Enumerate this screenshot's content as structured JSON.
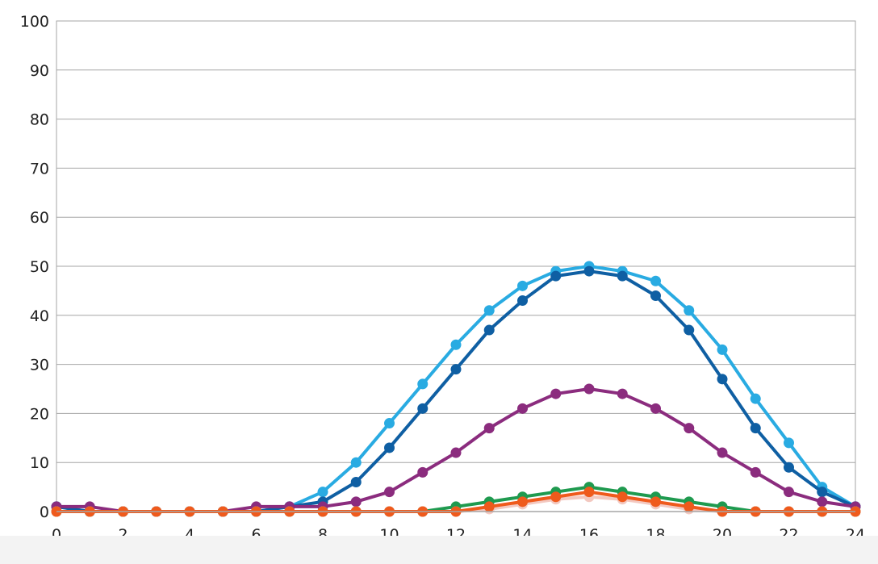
{
  "chart_data": {
    "type": "line",
    "title": "",
    "xlabel": "",
    "ylabel": "",
    "xlim": [
      0,
      24
    ],
    "ylim": [
      0,
      100
    ],
    "x_ticks": [
      "0",
      "2",
      "4",
      "6",
      "8",
      "10",
      "12",
      "14",
      "16",
      "18",
      "20",
      "22",
      "24"
    ],
    "y_ticks": [
      "0",
      "10",
      "20",
      "30",
      "40",
      "50",
      "60",
      "70",
      "80",
      "90",
      "100"
    ],
    "grid": "horizontal",
    "x": [
      0,
      1,
      2,
      3,
      4,
      5,
      6,
      7,
      8,
      9,
      10,
      11,
      12,
      13,
      14,
      15,
      16,
      17,
      18,
      19,
      20,
      21,
      22,
      23,
      24
    ],
    "series": [
      {
        "color": "#29abe2",
        "values": [
          1,
          0,
          0,
          0,
          0,
          0,
          0,
          1,
          4,
          10,
          18,
          26,
          34,
          41,
          46,
          49,
          50,
          49,
          47,
          41,
          33,
          23,
          14,
          5,
          1
        ]
      },
      {
        "color": "#0f5fa3",
        "values": [
          1,
          0,
          0,
          0,
          0,
          0,
          0,
          1,
          2,
          6,
          13,
          21,
          29,
          37,
          43,
          48,
          49,
          48,
          44,
          37,
          27,
          17,
          9,
          4,
          1
        ]
      },
      {
        "color": "#8b2c7e",
        "values": [
          1,
          1,
          0,
          0,
          0,
          0,
          1,
          1,
          1,
          2,
          4,
          8,
          12,
          17,
          21,
          24,
          25,
          24,
          21,
          17,
          12,
          8,
          4,
          2,
          1
        ]
      },
      {
        "color": "#1f9a4f",
        "values": [
          0,
          0,
          0,
          0,
          0,
          0,
          0,
          0,
          0,
          0,
          0,
          0,
          1,
          2,
          3,
          4,
          5,
          4,
          3,
          2,
          1,
          0,
          0,
          0,
          0
        ]
      },
      {
        "color": "#f3c8c0",
        "values": [
          0,
          0,
          0,
          0,
          0,
          0,
          0,
          0,
          0,
          0,
          0,
          0,
          0,
          0.5,
          1.5,
          2.5,
          3,
          2.5,
          1.5,
          0.5,
          0,
          0,
          0,
          0,
          0
        ]
      },
      {
        "color": "#ef5a1c",
        "values": [
          0,
          0,
          0,
          0,
          0,
          0,
          0,
          0,
          0,
          0,
          0,
          0,
          0,
          1,
          2,
          3,
          4,
          3,
          2,
          1,
          0,
          0,
          0,
          0,
          0
        ]
      }
    ]
  }
}
